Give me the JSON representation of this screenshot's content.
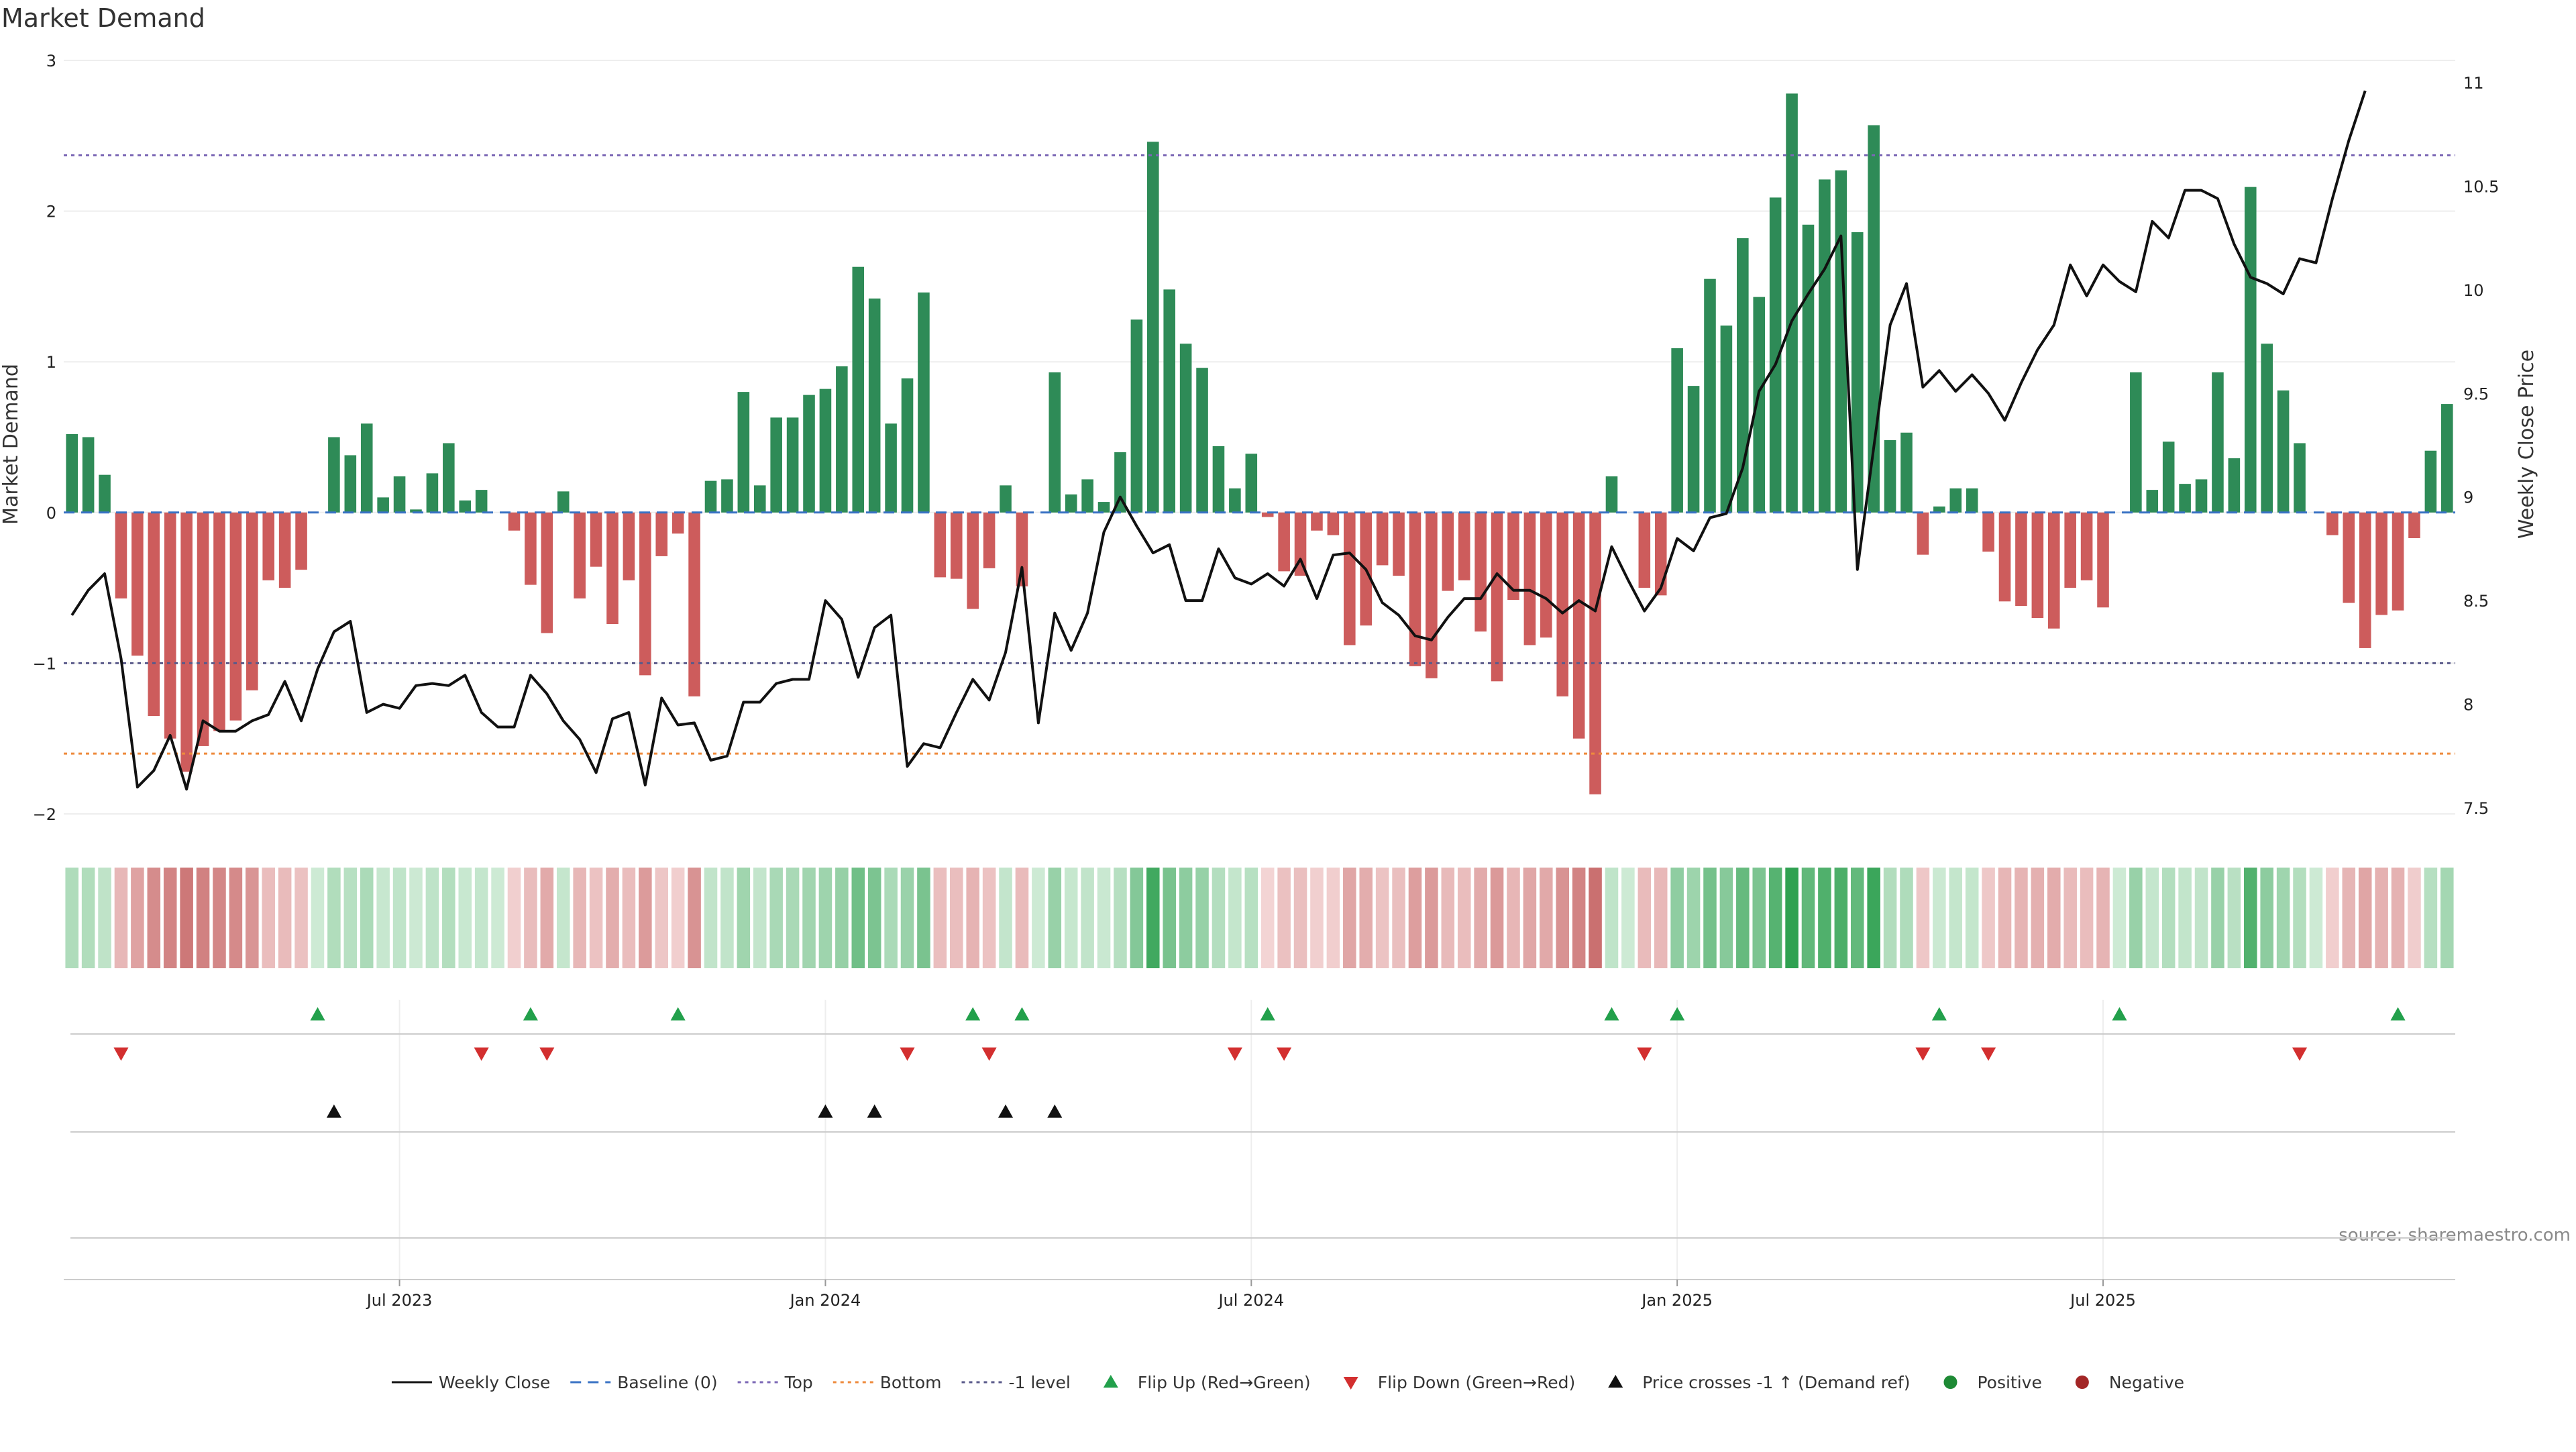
{
  "chart_data": {
    "type": "bar",
    "title": "Market Demand",
    "ylabel_left": "Market Demand",
    "ylabel_right": "Weekly Close Price",
    "source": "source: sharemaestro.com",
    "ylim_left": [
      -2,
      3
    ],
    "left_ticks": [
      {
        "value": 3,
        "label": "3"
      },
      {
        "value": 2,
        "label": "2"
      },
      {
        "value": 1,
        "label": "1"
      },
      {
        "value": 0,
        "label": "0"
      },
      {
        "value": -1,
        "label": "−1"
      },
      {
        "value": -2,
        "label": "−2"
      }
    ],
    "ylim_right": [
      7.5,
      11
    ],
    "right_ticks": [
      {
        "value": 11,
        "label": "11"
      },
      {
        "value": 10.5,
        "label": "10.5"
      },
      {
        "value": 10,
        "label": "10"
      },
      {
        "value": 9.5,
        "label": "9.5"
      },
      {
        "value": 9,
        "label": "9"
      },
      {
        "value": 8.5,
        "label": "8.5"
      },
      {
        "value": 8,
        "label": "8"
      },
      {
        "value": 7.5,
        "label": "7.5"
      }
    ],
    "x_ticks": [
      {
        "index": 20,
        "label": "Jul 2023"
      },
      {
        "index": 46,
        "label": "Jan 2024"
      },
      {
        "index": 72,
        "label": "Jul 2024"
      },
      {
        "index": 98,
        "label": "Jan 2025"
      },
      {
        "index": 124,
        "label": "Jul 2025"
      }
    ],
    "levels": {
      "top": 2.37,
      "bottom": -1.6,
      "minus_one": -1.0
    },
    "values": [
      0.52,
      0.5,
      0.25,
      -0.57,
      -0.95,
      -1.35,
      -1.5,
      -1.72,
      -1.55,
      -1.45,
      -1.38,
      -1.18,
      -0.45,
      -0.5,
      -0.38,
      0.0,
      0.5,
      0.38,
      0.59,
      0.1,
      0.24,
      0.02,
      0.26,
      0.46,
      0.08,
      0.15,
      0.0,
      -0.12,
      -0.48,
      -0.8,
      0.14,
      -0.57,
      -0.36,
      -0.74,
      -0.45,
      -1.08,
      -0.29,
      -0.14,
      -1.22,
      0.21,
      0.22,
      0.8,
      0.18,
      0.63,
      0.63,
      0.78,
      0.82,
      0.97,
      1.63,
      1.42,
      0.59,
      0.89,
      1.46,
      -0.43,
      -0.44,
      -0.64,
      -0.37,
      0.18,
      -0.49,
      0.0,
      0.93,
      0.12,
      0.22,
      0.07,
      0.4,
      1.28,
      2.46,
      1.48,
      1.12,
      0.96,
      0.44,
      0.16,
      0.39,
      -0.03,
      -0.39,
      -0.42,
      -0.12,
      -0.15,
      -0.88,
      -0.75,
      -0.35,
      -0.42,
      -1.02,
      -1.1,
      -0.52,
      -0.45,
      -0.79,
      -1.12,
      -0.58,
      -0.88,
      -0.83,
      -1.22,
      -1.5,
      -1.87,
      0.24,
      0.0,
      -0.5,
      -0.55,
      1.09,
      0.84,
      1.55,
      1.24,
      1.82,
      1.43,
      2.09,
      2.78,
      1.91,
      2.21,
      2.27,
      1.86,
      2.57,
      0.48,
      0.53,
      -0.28,
      0.04,
      0.16,
      0.16,
      -0.26,
      -0.59,
      -0.62,
      -0.7,
      -0.77,
      -0.5,
      -0.45,
      -0.63,
      0.0,
      0.93,
      0.15,
      0.47,
      0.19,
      0.22,
      0.93,
      0.36,
      2.16,
      1.12,
      0.81,
      0.46,
      0.0,
      -0.15,
      -0.6,
      -0.9,
      -0.68,
      -0.65,
      -0.17,
      0.41,
      0.72
    ],
    "series": [
      {
        "name": "Weekly Close",
        "values": [
          8.43,
          8.55,
          8.63,
          8.22,
          7.6,
          7.68,
          7.85,
          7.59,
          7.92,
          7.87,
          7.87,
          7.92,
          7.95,
          8.11,
          7.92,
          8.17,
          8.35,
          8.4,
          7.96,
          8.0,
          7.98,
          8.09,
          8.1,
          8.09,
          8.14,
          7.96,
          7.89,
          7.89,
          8.14,
          8.05,
          7.92,
          7.83,
          7.67,
          7.93,
          7.96,
          7.61,
          8.03,
          7.9,
          7.91,
          7.73,
          7.75,
          8.01,
          8.01,
          8.1,
          8.12,
          8.12,
          8.5,
          8.41,
          8.13,
          8.37,
          8.43,
          7.7,
          7.81,
          7.79,
          7.96,
          8.12,
          8.02,
          8.25,
          8.66,
          7.91,
          8.44,
          8.26,
          8.44,
          8.83,
          9.0,
          8.86,
          8.73,
          8.77,
          8.5,
          8.5,
          8.75,
          8.61,
          8.58,
          8.63,
          8.57,
          8.7,
          8.51,
          8.72,
          8.73,
          8.65,
          8.49,
          8.43,
          8.33,
          8.31,
          8.42,
          8.51,
          8.51,
          8.63,
          8.55,
          8.55,
          8.51,
          8.44,
          8.5,
          8.45,
          8.76,
          8.6,
          8.45,
          8.56,
          8.8,
          8.74,
          8.9,
          8.92,
          9.14,
          9.51,
          9.64,
          9.85,
          9.98,
          10.1,
          10.26,
          8.65,
          9.24,
          9.83,
          10.03,
          9.53,
          9.61,
          9.51,
          9.59,
          9.5,
          9.37,
          9.55,
          9.71,
          9.83,
          10.12,
          9.97,
          10.12,
          10.04,
          9.99,
          10.33,
          10.25,
          10.48,
          10.48,
          10.44,
          10.22,
          10.06,
          10.03,
          9.98,
          10.15,
          10.13,
          10.44,
          10.72,
          10.96
        ]
      }
    ],
    "flip_up_indices": [
      15,
      28,
      37,
      55,
      58,
      73,
      94,
      98,
      114,
      125,
      142
    ],
    "flip_down_indices": [
      3,
      25,
      29,
      51,
      56,
      71,
      74,
      96,
      113,
      117,
      136
    ],
    "price_cross_indices": [
      16,
      46,
      49,
      57,
      60
    ],
    "legend": [
      {
        "key": "weekly_close",
        "label": "Weekly Close",
        "color": "#111111"
      },
      {
        "key": "baseline",
        "label": "Baseline (0)",
        "color": "#3a73c4"
      },
      {
        "key": "top",
        "label": "Top",
        "color": "#7b67b5"
      },
      {
        "key": "bottom",
        "label": "Bottom",
        "color": "#ee8a3c"
      },
      {
        "key": "minus_one",
        "label": "-1 level",
        "color": "#5a5a8a"
      },
      {
        "key": "flip_up",
        "label": "Flip Up (Red→Green)",
        "color": "#22a04b"
      },
      {
        "key": "flip_down",
        "label": "Flip Down (Green→Red)",
        "color": "#d32f2f"
      },
      {
        "key": "price_cross",
        "label": "Price crosses -1 ↑ (Demand ref)",
        "color": "#111111"
      },
      {
        "key": "positive",
        "label": "Positive",
        "color": "#1e8a35"
      },
      {
        "key": "negative",
        "label": "Negative",
        "color": "#a32626"
      }
    ],
    "colors": {
      "positive_bar": "#2e8b57",
      "negative_bar": "#cd5c5c"
    }
  }
}
